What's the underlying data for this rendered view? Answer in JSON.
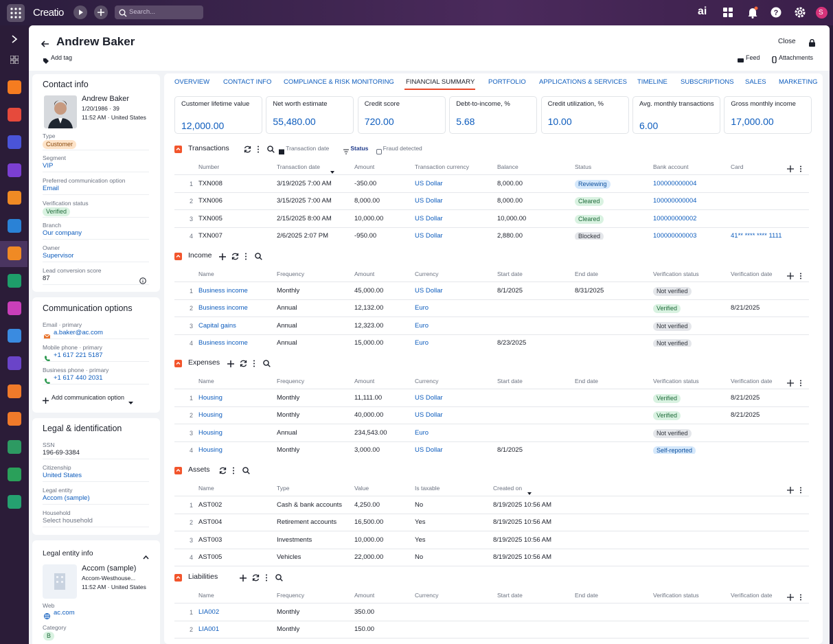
{
  "topbar": {
    "app": "Creatio",
    "search": "Search...",
    "ai": "ai",
    "avatar": "S"
  },
  "header": {
    "name": "Andrew Baker",
    "add_tag": "Add tag",
    "close": "Close",
    "feed": "Feed",
    "attachments": "Attachments"
  },
  "contact_info": {
    "title": "Contact info",
    "name": "Andrew Baker",
    "dob": "1/20/1986 · 39",
    "time_location": "11:52 AM · United States",
    "fields": [
      {
        "label": "Type",
        "value": "Customer",
        "kind": "badge",
        "badge": "orange"
      },
      {
        "label": "Segment",
        "value": "VIP",
        "kind": "link"
      },
      {
        "label": "Preferred communication option",
        "value": "Email",
        "kind": "link"
      },
      {
        "label": "Verification status",
        "value": "Verified",
        "kind": "badge",
        "badge": "green"
      },
      {
        "label": "Branch",
        "value": "Our company",
        "kind": "link"
      },
      {
        "label": "Owner",
        "value": "Supervisor",
        "kind": "link"
      },
      {
        "label": "Lead conversion score",
        "value": "87",
        "kind": "text"
      }
    ]
  },
  "communication": {
    "title": "Communication options",
    "items": [
      {
        "label": "Email · primary",
        "value": "a.baker@ac.com",
        "icon": "email"
      },
      {
        "label": "Mobile phone · primary",
        "value": "+1 617 221 5187",
        "icon": "phone"
      },
      {
        "label": "Business phone · primary",
        "value": "+1 617 440 2031",
        "icon": "phone"
      }
    ],
    "add": "Add communication option"
  },
  "legal": {
    "title": "Legal & identification",
    "fields": [
      {
        "label": "SSN",
        "value": "196-69-3384",
        "kind": "text"
      },
      {
        "label": "Citizenship",
        "value": "United States",
        "kind": "link"
      },
      {
        "label": "Legal entity",
        "value": "Accom (sample)",
        "kind": "link"
      },
      {
        "label": "Household",
        "value": "Select household",
        "kind": "placeholder"
      }
    ]
  },
  "legal_entity": {
    "title": "Legal entity info",
    "name": "Accom (sample)",
    "address": "Accom-Westhouse...",
    "time_location": "11:52 AM · United States",
    "web_label": "Web",
    "web": "ac.com",
    "category_label": "Category",
    "category": "B"
  },
  "tabs": [
    "OVERVIEW",
    "CONTACT INFO",
    "COMPLIANCE & RISK MONITORING",
    "FINANCIAL SUMMARY",
    "PORTFOLIO",
    "APPLICATIONS & SERVICES",
    "TIMELINE",
    "SUBSCRIPTIONS",
    "SALES",
    "MARKETING"
  ],
  "active_tab": 3,
  "kpis": [
    {
      "label": "Customer lifetime value",
      "value": "12,000.00"
    },
    {
      "label": "Net worth estimate",
      "value": "55,480.00"
    },
    {
      "label": "Credit score",
      "value": "720.00"
    },
    {
      "label": "Debt-to-income, %",
      "value": "5.68"
    },
    {
      "label": "Credit utilization, %",
      "value": "10.00"
    },
    {
      "label": "Avg. monthly transactions",
      "value": "6.00"
    },
    {
      "label": "Gross monthly income",
      "value": "17,000.00"
    }
  ],
  "sections": [
    {
      "title": "Transactions",
      "tools": [
        "refresh",
        "more",
        "search"
      ],
      "filters": [
        "Transaction date",
        "Status",
        "Fraud detected"
      ],
      "columns": [
        {
          "name": "Number",
          "kind": "text"
        },
        {
          "name": "Transaction date",
          "kind": "text",
          "sort": true
        },
        {
          "name": "Amount",
          "kind": "text"
        },
        {
          "name": "Transaction currency",
          "kind": "link"
        },
        {
          "name": "Balance",
          "kind": "text"
        },
        {
          "name": "Status",
          "kind": "badge"
        },
        {
          "name": "Bank account",
          "kind": "link"
        },
        {
          "name": "Card",
          "kind": "link"
        }
      ],
      "rows": [
        {
          "no": 1,
          "cells": [
            "TXN008",
            "3/19/2025 7:00 AM",
            "-350.00",
            "US Dollar",
            "8,000.00",
            {
              "text": "Reviewing",
              "badge": "blue"
            },
            "100000000004",
            null
          ]
        },
        {
          "no": 2,
          "cells": [
            "TXN006",
            "3/15/2025 7:00 AM",
            "8,000.00",
            "US Dollar",
            "8,000.00",
            {
              "text": "Cleared",
              "badge": "green"
            },
            "100000000004",
            null
          ]
        },
        {
          "no": 3,
          "cells": [
            "TXN005",
            "2/15/2025 8:00 AM",
            "10,000.00",
            "US Dollar",
            "10,000.00",
            {
              "text": "Cleared",
              "badge": "green"
            },
            "100000000002",
            null
          ]
        },
        {
          "no": 4,
          "cells": [
            "TXN007",
            "2/6/2025 2:07 PM",
            "-950.00",
            "US Dollar",
            "2,880.00",
            {
              "text": "Blocked",
              "badge": "grey"
            },
            "100000000003",
            "41** **** **** 1111"
          ]
        }
      ]
    },
    {
      "title": "Income",
      "tools": [
        "add",
        "refresh",
        "more",
        "search"
      ],
      "columns": [
        {
          "name": "Name",
          "kind": "link"
        },
        {
          "name": "Frequency",
          "kind": "text"
        },
        {
          "name": "Amount",
          "kind": "text"
        },
        {
          "name": "Currency",
          "kind": "link"
        },
        {
          "name": "Start date",
          "kind": "text"
        },
        {
          "name": "End date",
          "kind": "text"
        },
        {
          "name": "Verification status",
          "kind": "badge"
        },
        {
          "name": "Verification date",
          "kind": "text"
        }
      ],
      "rows": [
        {
          "no": 1,
          "cells": [
            "Business income",
            "Monthly",
            "45,000.00",
            "US Dollar",
            "8/1/2025",
            "8/31/2025",
            {
              "text": "Not verified",
              "badge": "grey"
            },
            null
          ]
        },
        {
          "no": 2,
          "cells": [
            "Business income",
            "Annual",
            "12,132.00",
            "Euro",
            null,
            null,
            {
              "text": "Verified",
              "badge": "green"
            },
            "8/21/2025"
          ]
        },
        {
          "no": 3,
          "cells": [
            "Capital gains",
            "Annual",
            "12,323.00",
            "Euro",
            null,
            null,
            {
              "text": "Not verified",
              "badge": "grey"
            },
            null
          ]
        },
        {
          "no": 4,
          "cells": [
            "Business income",
            "Annual",
            "15,000.00",
            "Euro",
            "8/23/2025",
            null,
            {
              "text": "Not verified",
              "badge": "grey"
            },
            null
          ]
        }
      ]
    },
    {
      "title": "Expenses",
      "tools": [
        "add",
        "refresh",
        "more",
        "search"
      ],
      "columns": [
        {
          "name": "Name",
          "kind": "link"
        },
        {
          "name": "Frequency",
          "kind": "text"
        },
        {
          "name": "Amount",
          "kind": "text"
        },
        {
          "name": "Currency",
          "kind": "link"
        },
        {
          "name": "Start date",
          "kind": "text"
        },
        {
          "name": "End date",
          "kind": "text"
        },
        {
          "name": "Verification status",
          "kind": "badge"
        },
        {
          "name": "Verification date",
          "kind": "text"
        }
      ],
      "rows": [
        {
          "no": 1,
          "cells": [
            "Housing",
            "Monthly",
            "11,111.00",
            "US Dollar",
            null,
            null,
            {
              "text": "Verified",
              "badge": "green"
            },
            "8/21/2025"
          ]
        },
        {
          "no": 2,
          "cells": [
            "Housing",
            "Monthly",
            "40,000.00",
            "US Dollar",
            null,
            null,
            {
              "text": "Verified",
              "badge": "green"
            },
            "8/21/2025"
          ]
        },
        {
          "no": 3,
          "cells": [
            "Housing",
            "Annual",
            "234,543.00",
            "Euro",
            null,
            null,
            {
              "text": "Not verified",
              "badge": "grey"
            },
            null
          ]
        },
        {
          "no": 4,
          "cells": [
            "Housing",
            "Monthly",
            "3,000.00",
            "US Dollar",
            "8/1/2025",
            null,
            {
              "text": "Self-reported",
              "badge": "blue"
            },
            null
          ]
        }
      ]
    },
    {
      "title": "Assets",
      "tools": [
        "refresh",
        "more",
        "search"
      ],
      "columns": [
        {
          "name": "Name",
          "kind": "text"
        },
        {
          "name": "Type",
          "kind": "text"
        },
        {
          "name": "Value",
          "kind": "text"
        },
        {
          "name": "Is taxable",
          "kind": "text"
        },
        {
          "name": "Created on",
          "kind": "text",
          "sort": true
        }
      ],
      "rows": [
        {
          "no": 1,
          "cells": [
            "AST002",
            "Cash & bank accounts",
            "4,250.00",
            "No",
            "8/19/2025 10:56 AM"
          ]
        },
        {
          "no": 2,
          "cells": [
            "AST004",
            "Retirement accounts",
            "16,500.00",
            "Yes",
            "8/19/2025 10:56 AM"
          ]
        },
        {
          "no": 3,
          "cells": [
            "AST003",
            "Investments",
            "10,000.00",
            "Yes",
            "8/19/2025 10:56 AM"
          ]
        },
        {
          "no": 4,
          "cells": [
            "AST005",
            "Vehicles",
            "22,000.00",
            "No",
            "8/19/2025 10:56 AM"
          ]
        }
      ]
    },
    {
      "title": "Liabilities",
      "tools": [
        "add",
        "refresh",
        "more",
        "search"
      ],
      "columns": [
        {
          "name": "Name",
          "kind": "link"
        },
        {
          "name": "Frequency",
          "kind": "text"
        },
        {
          "name": "Amount",
          "kind": "text"
        },
        {
          "name": "Currency",
          "kind": "link"
        },
        {
          "name": "Start date",
          "kind": "text"
        },
        {
          "name": "End date",
          "kind": "text"
        },
        {
          "name": "Verification status",
          "kind": "badge"
        },
        {
          "name": "Verification date",
          "kind": "text"
        }
      ],
      "rows": [
        {
          "no": 1,
          "cells": [
            "LIA002",
            "Monthly",
            "350.00",
            null,
            null,
            null,
            null,
            null
          ]
        },
        {
          "no": 2,
          "cells": [
            "LIA001",
            "Monthly",
            "150.00",
            null,
            null,
            null,
            null,
            null
          ]
        }
      ]
    }
  ]
}
